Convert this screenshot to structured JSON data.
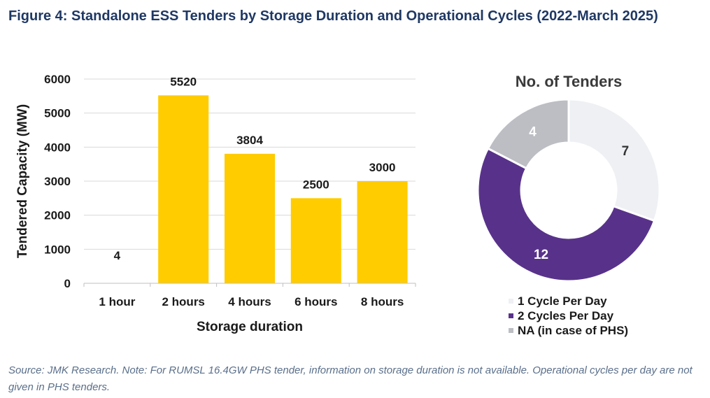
{
  "figure_title": "Figure 4:  Standalone ESS Tenders by Storage Duration and Operational Cycles (2022-March 2025)",
  "source_note": "Source: JMK Research. Note: For RUMSL 16.4GW PHS tender, information on storage duration is not available. Operational cycles per day are not given in PHS tenders.",
  "colors": {
    "bar": "#ffcc00",
    "grid": "#d9d9d9",
    "axis_text": "#1a1a1a",
    "title": "#1f3864",
    "slice_1": "#eef0f3",
    "slice_2": "#58328a",
    "slice_3": "#bcbec3"
  },
  "chart_data": [
    {
      "type": "bar",
      "title": "",
      "categories": [
        "1 hour",
        "2 hours",
        "4 hours",
        "6 hours",
        "8 hours"
      ],
      "values": [
        4,
        5520,
        3804,
        2500,
        3000
      ],
      "data_labels": [
        "4",
        "5520",
        "3804",
        "2500",
        "3000"
      ],
      "xlabel": "Storage duration",
      "ylabel": "Tendered Capacity (MW)",
      "ylim": [
        0,
        6000
      ],
      "yticks": [
        "0",
        "1000",
        "2000",
        "3000",
        "4000",
        "5000",
        "6000"
      ],
      "grid": true
    },
    {
      "type": "pie",
      "title": "No. of Tenders",
      "labels": [
        "1 Cycle Per Day",
        "2 Cycles Per Day",
        "NA (in case of PHS)"
      ],
      "values": [
        7,
        12,
        4
      ],
      "data_labels": [
        "7",
        "12",
        "4"
      ],
      "legend_position": "bottom"
    }
  ]
}
